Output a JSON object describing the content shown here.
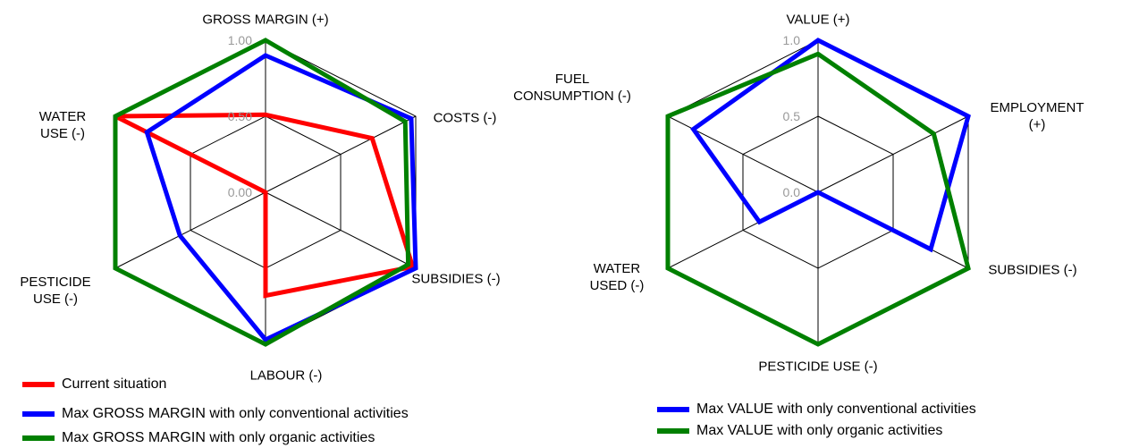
{
  "chart_data": [
    {
      "type": "radar",
      "categories": [
        "GROSS MARGIN (+)",
        "COSTS (-)",
        "SUBSIDIES (-)",
        "LABOUR (-)",
        "PESTICIDE\nUSE (-)",
        "WATER\nUSE (-)"
      ],
      "ylim": [
        0,
        1
      ],
      "yticks": [
        {
          "value": 0,
          "label": "0.00"
        },
        {
          "value": 0.5,
          "label": "0.50"
        },
        {
          "value": 1,
          "label": "1.00"
        }
      ],
      "series": [
        {
          "name": "Current situation",
          "color": "#ff0000",
          "values": [
            0.51,
            0.71,
            0.98,
            0.68,
            0,
            1.0
          ]
        },
        {
          "name": "Max GROSS MARGIN with only conventional activities",
          "color": "#0000ff",
          "values": [
            0.9,
            0.97,
            1.0,
            0.97,
            0.57,
            0.79
          ]
        },
        {
          "name": "Max GROSS MARGIN with only organic activities",
          "color": "#008000",
          "values": [
            1.0,
            0.93,
            0.95,
            1.0,
            1.0,
            1.0
          ]
        }
      ]
    },
    {
      "type": "radar",
      "categories": [
        "VALUE (+)",
        "EMPLOYMENT (+)",
        "SUBSIDIES (-)",
        "PESTICIDE USE (-)",
        "WATER\nUSED (-)",
        "FUEL\nCONSUMPTION (-)"
      ],
      "ylim": [
        0,
        1
      ],
      "yticks": [
        {
          "value": 0,
          "label": "0.0"
        },
        0.5,
        {
          "value": 1,
          "label": "1.0"
        }
      ],
      "series": [
        {
          "name": "Max VALUE with only conventional activities",
          "color": "#0000ff",
          "values": [
            1.0,
            1.0,
            0.75,
            0,
            0.39,
            0.83
          ]
        },
        {
          "name": "Max VALUE with only organic activities",
          "color": "#008000",
          "values": [
            0.91,
            0.77,
            1.0,
            1.0,
            1.0,
            1.0
          ]
        }
      ]
    }
  ]
}
